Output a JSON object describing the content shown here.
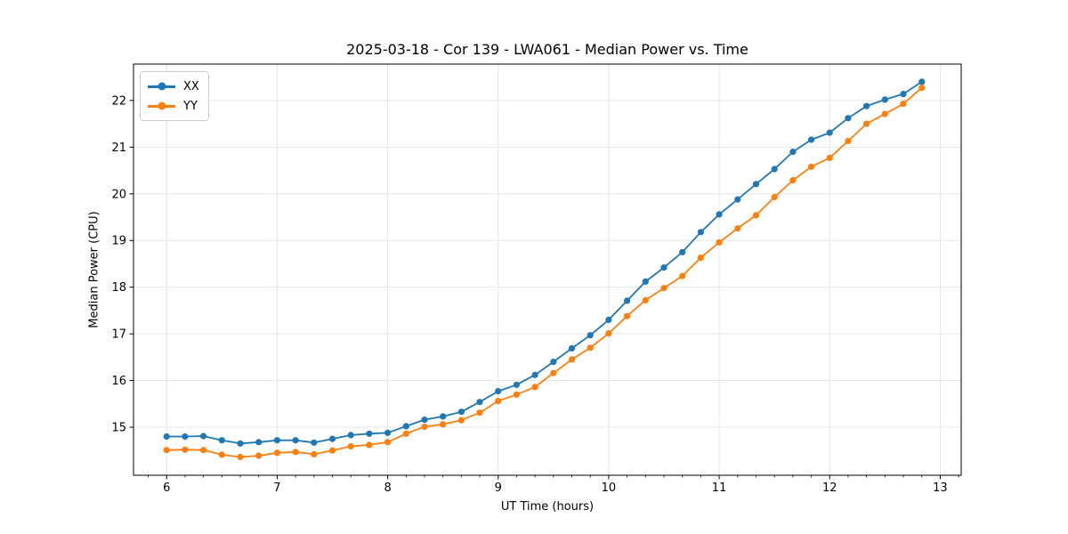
{
  "figure": {
    "title": "2025-03-18 - Cor 139 - LWA061 - Median Power vs. Time",
    "xlabel": "UT Time (hours)",
    "ylabel": "Median Power (CPU)"
  },
  "legend": {
    "entries": [
      {
        "label": "XX",
        "color": "#1f77b4"
      },
      {
        "label": "YY",
        "color": "#ff7f0e"
      }
    ]
  },
  "chart_data": {
    "type": "line",
    "title": "2025-03-18 - Cor 139 - LWA061 - Median Power vs. Time",
    "xlabel": "UT Time (hours)",
    "ylabel": "Median Power (CPU)",
    "xlim": [
      5.7,
      13.19
    ],
    "ylim": [
      13.97,
      22.78
    ],
    "xticks": [
      6,
      7,
      8,
      9,
      10,
      11,
      12,
      13
    ],
    "yticks": [
      15,
      16,
      17,
      18,
      19,
      20,
      21,
      22
    ],
    "x_minor_step": 0.166667,
    "grid": true,
    "legend_position": "upper-left",
    "marker": "circle",
    "x": [
      6.0,
      6.1667,
      6.3333,
      6.5,
      6.6667,
      6.8333,
      7.0,
      7.1667,
      7.3333,
      7.5,
      7.6667,
      7.8333,
      8.0,
      8.1667,
      8.3333,
      8.5,
      8.6667,
      8.8333,
      9.0,
      9.1667,
      9.3333,
      9.5,
      9.6667,
      9.8333,
      10.0,
      10.1667,
      10.3333,
      10.5,
      10.6667,
      10.8333,
      11.0,
      11.1667,
      11.3333,
      11.5,
      11.6667,
      11.8333,
      12.0,
      12.1667,
      12.3333,
      12.5,
      12.6667,
      12.8333
    ],
    "series": [
      {
        "name": "XX",
        "color": "#1f77b4",
        "values": [
          14.8,
          14.8,
          14.81,
          14.72,
          14.65,
          14.68,
          14.72,
          14.72,
          14.67,
          14.75,
          14.83,
          14.86,
          14.88,
          15.02,
          15.16,
          15.23,
          15.33,
          15.54,
          15.77,
          15.91,
          16.12,
          16.4,
          16.69,
          16.97,
          17.3,
          17.71,
          18.12,
          18.42,
          18.75,
          19.18,
          19.56,
          19.88,
          20.21,
          20.53,
          20.9,
          21.16,
          21.31,
          21.62,
          21.88,
          22.02,
          22.14,
          22.4
        ]
      },
      {
        "name": "YY",
        "color": "#ff7f0e",
        "values": [
          14.51,
          14.52,
          14.51,
          14.41,
          14.36,
          14.39,
          14.45,
          14.47,
          14.42,
          14.5,
          14.59,
          14.62,
          14.68,
          14.86,
          15.01,
          15.06,
          15.15,
          15.31,
          15.56,
          15.7,
          15.86,
          16.16,
          16.45,
          16.7,
          17.01,
          17.38,
          17.72,
          17.98,
          18.24,
          18.63,
          18.96,
          19.26,
          19.54,
          19.93,
          20.29,
          20.58,
          20.77,
          21.13,
          21.5,
          21.71,
          21.93,
          22.27
        ]
      }
    ]
  }
}
